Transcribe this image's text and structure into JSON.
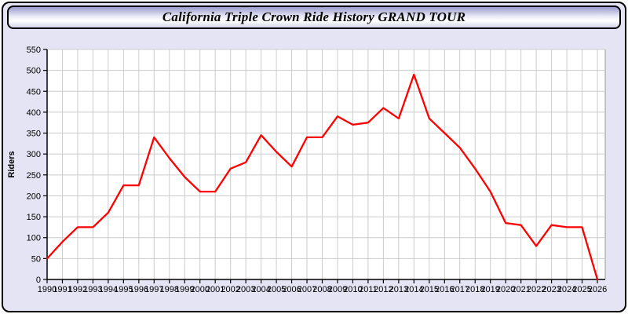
{
  "window": {
    "title": "California Triple Crown Ride History GRAND TOUR"
  },
  "chart_data": {
    "type": "line",
    "title": "California Triple Crown Ride History GRAND TOUR",
    "xlabel": "",
    "ylabel": "Riders",
    "x": [
      1990,
      1991,
      1992,
      1993,
      1994,
      1995,
      1996,
      1997,
      1998,
      1999,
      2000,
      2001,
      2002,
      2003,
      2004,
      2005,
      2006,
      2007,
      2008,
      2009,
      2010,
      2011,
      2012,
      2013,
      2014,
      2015,
      2016,
      2017,
      2018,
      2019,
      2020,
      2021,
      2022,
      2023,
      2024,
      2025,
      2026
    ],
    "series": [
      {
        "name": "Riders",
        "values": [
          50,
          90,
          125,
          125,
          160,
          225,
          225,
          340,
          290,
          245,
          210,
          210,
          265,
          280,
          345,
          305,
          270,
          340,
          340,
          390,
          370,
          375,
          410,
          385,
          490,
          385,
          350,
          315,
          265,
          210,
          135,
          130,
          80,
          130,
          125,
          125,
          0
        ]
      }
    ],
    "ylim": [
      0,
      550
    ],
    "ytick_step": 50,
    "xtick_step": 1,
    "grid": true,
    "legend": "none"
  },
  "colors": {
    "panel_bg": "#e4e4f4",
    "plot_bg": "#ffffff",
    "grid": "#cccccc",
    "plot_right_border": "#999999",
    "axis": "#000000",
    "tick_label": "#000000",
    "line": "#ff0000",
    "titlebar_top": "#9a9acc",
    "titlebar_mid": "#ffffff",
    "titlebar_bottom": "#d4d4ea"
  }
}
